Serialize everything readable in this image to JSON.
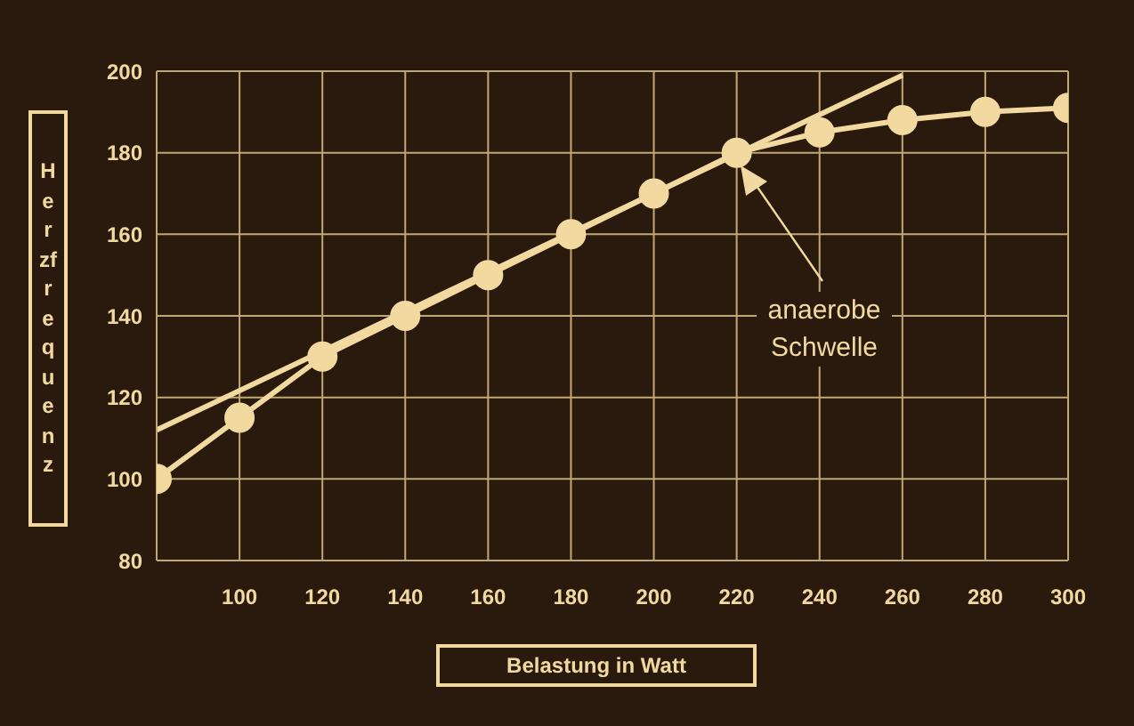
{
  "chart_data": {
    "type": "line",
    "xlabel": "Belastung in Watt",
    "ylabel": "Herzfrequenz",
    "xlim": [
      80,
      300
    ],
    "xticks": [
      100,
      120,
      140,
      160,
      180,
      200,
      220,
      240,
      260,
      280,
      300
    ],
    "ylim": [
      80,
      200
    ],
    "yticks": [
      80,
      100,
      120,
      140,
      160,
      180,
      200
    ],
    "grid": true,
    "marker": "circle",
    "line_style": "solid",
    "series": [
      {
        "color": "#f2d9a0",
        "x": [
          80,
          100,
          120,
          140,
          160,
          180,
          200,
          220,
          240,
          260,
          280,
          300
        ],
        "values": [
          100,
          115,
          130,
          140,
          150,
          160,
          170,
          180,
          185,
          188,
          190,
          191
        ]
      },
      {
        "type": "line",
        "marker": "none",
        "color": "#f2d9a0",
        "x": [
          80,
          260
        ],
        "values": [
          112,
          199
        ]
      }
    ],
    "annotations": [
      "anaerobe Schwelle"
    ]
  }
}
